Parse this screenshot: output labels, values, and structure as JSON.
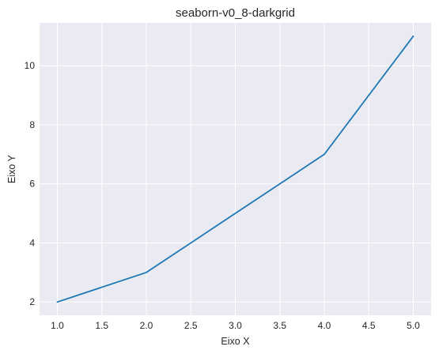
{
  "chart_data": {
    "type": "line",
    "title": "seaborn-v0_8-darkgrid",
    "xlabel": "Eixo X",
    "ylabel": "Eixo Y",
    "x": [
      1,
      2,
      3,
      4,
      5
    ],
    "series": [
      {
        "values": [
          2,
          3,
          5,
          7,
          11
        ]
      }
    ],
    "xlim": [
      0.8,
      5.2
    ],
    "ylim": [
      1.55,
      11.45
    ],
    "xticks": [
      1.0,
      1.5,
      2.0,
      2.5,
      3.0,
      3.5,
      4.0,
      4.5,
      5.0
    ],
    "xtick_labels": [
      "1.0",
      "1.5",
      "2.0",
      "2.5",
      "3.0",
      "3.5",
      "4.0",
      "4.5",
      "5.0"
    ],
    "yticks": [
      2,
      4,
      6,
      8,
      10
    ],
    "ytick_labels": [
      "2",
      "4",
      "6",
      "8",
      "10"
    ],
    "grid": true,
    "legend": "none",
    "colors": {
      "line": "#1f77b4",
      "plot_background": "#eaeaf2",
      "grid": "#ffffff",
      "text": "#262626"
    }
  }
}
